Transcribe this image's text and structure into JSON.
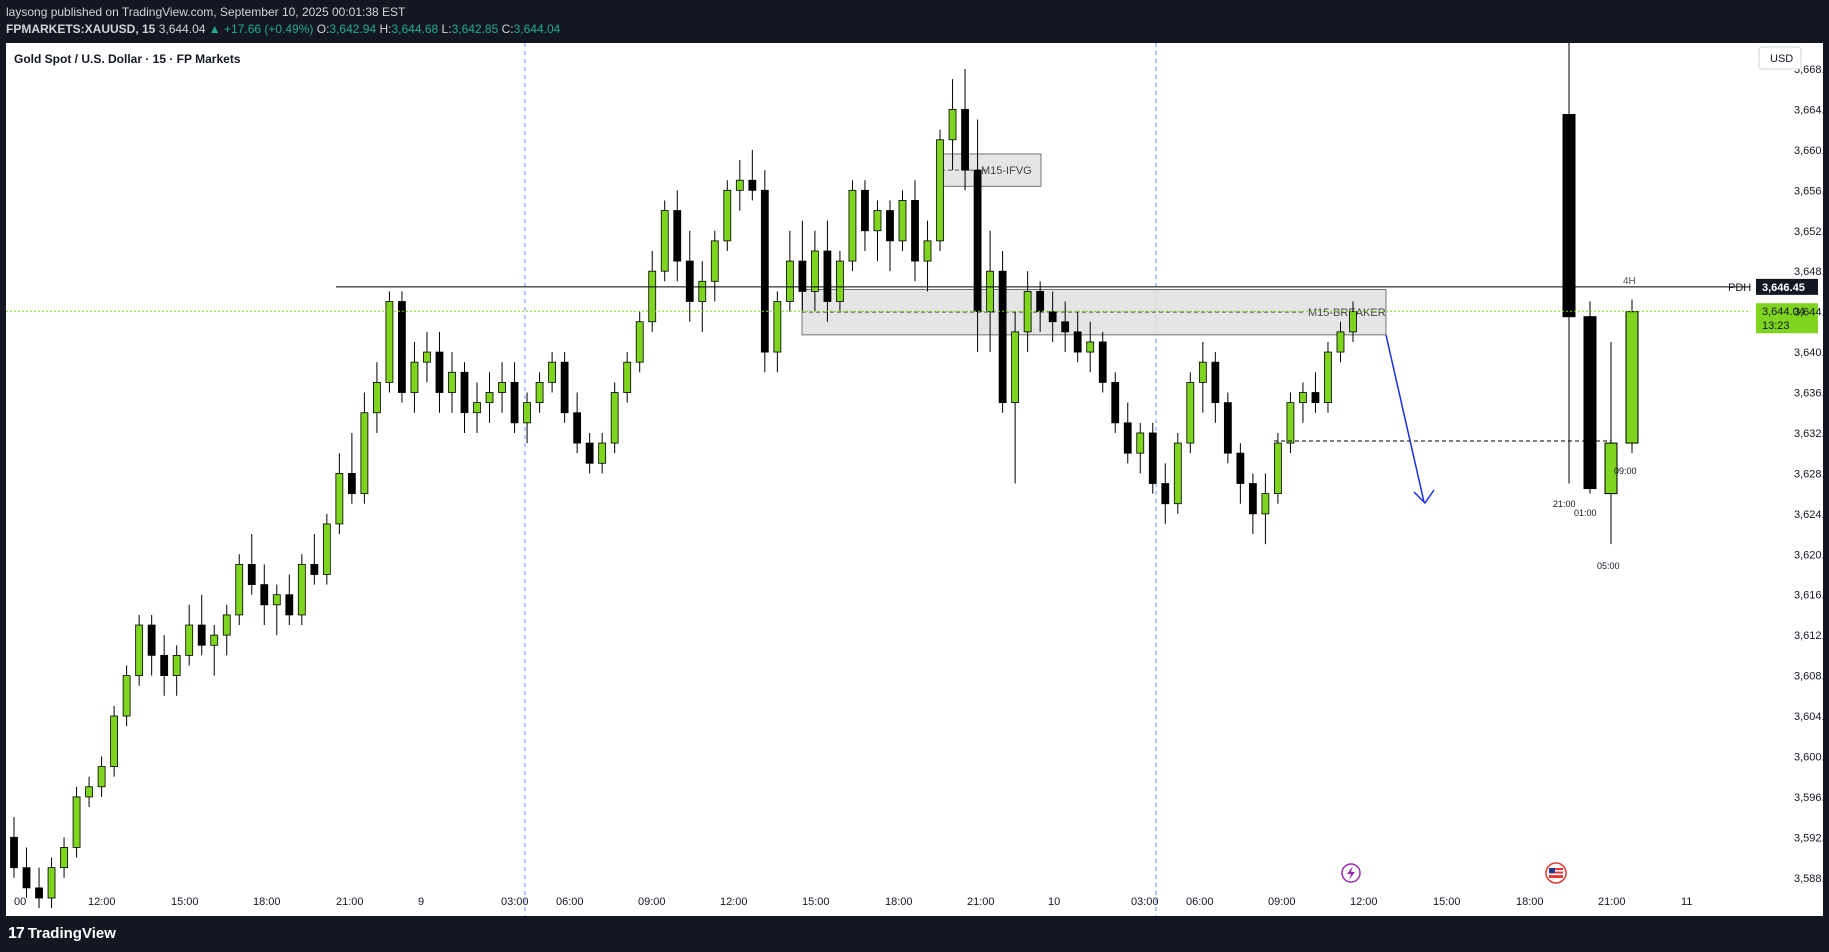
{
  "header": {
    "published_line": "laysong published on TradingView.com, September 10, 2025 00:01:38 EST",
    "symbol": "FPMARKETS:XAUUSD, 15",
    "last": "3,644.04",
    "change_arrow": "▲",
    "change": "+17.66 (+0.49%)",
    "o_label": "O:",
    "o": "3,642.94",
    "h_label": "H:",
    "h": "3,644.68",
    "l_label": "L:",
    "l": "3,642.85",
    "c_label": "C:",
    "c": "3,644.04"
  },
  "chart_title": "Gold Spot / U.S. Dollar · 15 · FP Markets",
  "currency_button": "USD",
  "footer": {
    "logo_text": "TradingView",
    "logo_mark": "17"
  },
  "colors": {
    "up": "#7fd41f",
    "down": "#000000",
    "price_line": "#7fd41f",
    "annotation_arrow": "#1730e0",
    "session_line": "#2962ff"
  },
  "chart_data": {
    "type": "candlestick",
    "title": "Gold Spot / U.S. Dollar · 15 · FP Markets",
    "y_axis": {
      "min": 3586,
      "max": 3668,
      "ticks": [
        "3,588.00",
        "3,592.00",
        "3,596.00",
        "3,600.00",
        "3,604.00",
        "3,608.00",
        "3,612.00",
        "3,616.00",
        "3,620.00",
        "3,624.00",
        "3,628.00",
        "3,632.00",
        "3,636.00",
        "3,640.00",
        "3,644.00",
        "3,648.00",
        "3,652.00",
        "3,656.00",
        "3,660.00",
        "3,664.00",
        "3,668.00"
      ]
    },
    "x_axis": {
      "ticks": [
        "00",
        "12:00",
        "15:00",
        "18:00",
        "21:00",
        "9",
        "03:00",
        "06:00",
        "09:00",
        "12:00",
        "15:00",
        "18:00",
        "21:00",
        "10",
        "03:00",
        "06:00",
        "09:00",
        "12:00",
        "15:00",
        "18:00",
        "21:00",
        "11"
      ]
    },
    "last_price": {
      "label": "3,644.04",
      "countdown": "13:23",
      "value": 3644.04
    },
    "levels": [
      {
        "name": "PDH",
        "label": "3,646.45",
        "value": 3646.45
      },
      {
        "name": "4H",
        "value": 3646.45
      }
    ],
    "zones": [
      {
        "label": "M15-IFVG",
        "top": 3659.6,
        "bottom": 3656.4
      },
      {
        "label": "M15-BREAKER",
        "top": 3646.2,
        "bottom": 3641.7
      }
    ],
    "htf_candles": {
      "timeframe": "4H",
      "labels": [
        "21:00",
        "01:00",
        "05:00",
        "09:00"
      ],
      "candles": [
        {
          "label": "21:00",
          "o": 3663.5,
          "h": 3674.0,
          "l": 3627.0,
          "c": 3643.5
        },
        {
          "label": "01:00",
          "o": 3643.5,
          "h": 3645.0,
          "l": 3626.0,
          "c": 3626.5
        },
        {
          "label": "05:00",
          "o": 3626.0,
          "h": 3641.0,
          "l": 3621.0,
          "c": 3631.0
        },
        {
          "label": "09:00",
          "o": 3631.0,
          "h": 3645.2,
          "l": 3630.0,
          "c": 3644.0
        }
      ]
    },
    "dashed_level": 3631.2,
    "series": [
      {
        "name": "",
        "ohlc": [
          [
            3592,
            3594,
            3588,
            3589
          ],
          [
            3589,
            3591,
            3586,
            3587
          ],
          [
            3587,
            3589,
            3585,
            3586
          ],
          [
            3586,
            3590,
            3585,
            3589
          ],
          [
            3589,
            3592,
            3588,
            3591
          ],
          [
            3591,
            3597,
            3590,
            3596
          ],
          [
            3596,
            3598,
            3595,
            3597
          ],
          [
            3597,
            3600,
            3596,
            3599
          ],
          [
            3599,
            3605,
            3598,
            3604
          ],
          [
            3604,
            3609,
            3603,
            3608
          ],
          [
            3608,
            3614,
            3607,
            3613
          ],
          [
            3613,
            3614,
            3608,
            3610
          ],
          [
            3610,
            3612,
            3606,
            3608
          ],
          [
            3608,
            3611,
            3606,
            3610
          ],
          [
            3610,
            3615,
            3609,
            3613
          ],
          [
            3613,
            3616,
            3610,
            3611
          ],
          [
            3611,
            3613,
            3608,
            3612
          ],
          [
            3612,
            3615,
            3610,
            3614
          ],
          [
            3614,
            3620,
            3613,
            3619
          ],
          [
            3619,
            3622,
            3616,
            3617
          ],
          [
            3617,
            3619,
            3613,
            3615
          ],
          [
            3615,
            3617,
            3612,
            3616
          ],
          [
            3616,
            3618,
            3613,
            3614
          ],
          [
            3614,
            3620,
            3613,
            3619
          ],
          [
            3619,
            3622,
            3617,
            3618
          ],
          [
            3618,
            3624,
            3617,
            3623
          ],
          [
            3623,
            3630,
            3622,
            3628
          ],
          [
            3628,
            3632,
            3625,
            3626
          ],
          [
            3626,
            3636,
            3625,
            3634
          ],
          [
            3634,
            3639,
            3632,
            3637
          ],
          [
            3637,
            3646,
            3636,
            3645
          ],
          [
            3645,
            3646,
            3635,
            3636
          ],
          [
            3636,
            3641,
            3634,
            3639
          ],
          [
            3639,
            3642,
            3637,
            3640
          ],
          [
            3640,
            3642,
            3634,
            3636
          ],
          [
            3636,
            3640,
            3634,
            3638
          ],
          [
            3638,
            3639,
            3632,
            3634
          ],
          [
            3634,
            3637,
            3632,
            3635
          ],
          [
            3635,
            3638,
            3633,
            3636
          ],
          [
            3636,
            3639,
            3634,
            3637
          ],
          [
            3637,
            3639,
            3632,
            3633
          ],
          [
            3633,
            3636,
            3631,
            3635
          ],
          [
            3635,
            3638,
            3634,
            3637
          ],
          [
            3637,
            3640,
            3636,
            3639
          ],
          [
            3639,
            3640,
            3633,
            3634
          ],
          [
            3634,
            3636,
            3630,
            3631
          ],
          [
            3631,
            3632,
            3628,
            3629
          ],
          [
            3629,
            3632,
            3628,
            3631
          ],
          [
            3631,
            3637,
            3630,
            3636
          ],
          [
            3636,
            3640,
            3635,
            3639
          ],
          [
            3639,
            3644,
            3638,
            3643
          ],
          [
            3643,
            3650,
            3642,
            3648
          ],
          [
            3648,
            3655,
            3647,
            3654
          ],
          [
            3654,
            3656,
            3647,
            3649
          ],
          [
            3649,
            3652,
            3643,
            3645
          ],
          [
            3645,
            3649,
            3642,
            3647
          ],
          [
            3647,
            3652,
            3645,
            3651
          ],
          [
            3651,
            3657,
            3650,
            3656
          ],
          [
            3656,
            3659,
            3654,
            3657
          ],
          [
            3657,
            3660,
            3655,
            3656
          ],
          [
            3656,
            3658,
            3638,
            3640
          ],
          [
            3640,
            3646,
            3638,
            3645
          ],
          [
            3645,
            3652,
            3644,
            3649
          ],
          [
            3649,
            3653,
            3644,
            3646
          ],
          [
            3646,
            3652,
            3644,
            3650
          ],
          [
            3650,
            3653,
            3643,
            3645
          ],
          [
            3645,
            3650,
            3644,
            3649
          ],
          [
            3649,
            3657,
            3648,
            3656
          ],
          [
            3656,
            3657,
            3650,
            3652
          ],
          [
            3652,
            3655,
            3649,
            3654
          ],
          [
            3654,
            3655,
            3648,
            3651
          ],
          [
            3651,
            3656,
            3650,
            3655
          ],
          [
            3655,
            3657,
            3647,
            3649
          ],
          [
            3649,
            3653,
            3646,
            3651
          ],
          [
            3651,
            3662,
            3650,
            3661
          ],
          [
            3661,
            3667,
            3658,
            3664
          ],
          [
            3664,
            3668,
            3656,
            3658
          ],
          [
            3658,
            3663,
            3640,
            3644
          ],
          [
            3644,
            3652,
            3640,
            3648
          ],
          [
            3648,
            3650,
            3634,
            3635
          ],
          [
            3635,
            3644,
            3627,
            3642
          ],
          [
            3642,
            3648,
            3640,
            3646
          ],
          [
            3646,
            3647,
            3642,
            3644
          ],
          [
            3644,
            3646,
            3641,
            3643
          ],
          [
            3643,
            3645,
            3640,
            3642
          ],
          [
            3642,
            3644,
            3639,
            3640
          ],
          [
            3640,
            3643,
            3638,
            3641
          ],
          [
            3641,
            3642,
            3636,
            3637
          ],
          [
            3637,
            3638,
            3632,
            3633
          ],
          [
            3633,
            3635,
            3629,
            3630
          ],
          [
            3630,
            3633,
            3628,
            3632
          ],
          [
            3632,
            3633,
            3626,
            3627
          ],
          [
            3627,
            3629,
            3623,
            3625
          ],
          [
            3625,
            3632,
            3624,
            3631
          ],
          [
            3631,
            3638,
            3630,
            3637
          ],
          [
            3637,
            3641,
            3634,
            3639
          ],
          [
            3639,
            3640,
            3633,
            3635
          ],
          [
            3635,
            3636,
            3629,
            3630
          ],
          [
            3630,
            3631,
            3625,
            3627
          ],
          [
            3627,
            3628,
            3622,
            3624
          ],
          [
            3624,
            3628,
            3621,
            3626
          ],
          [
            3626,
            3632,
            3625,
            3631
          ],
          [
            3631,
            3636,
            3630,
            3635
          ],
          [
            3635,
            3637,
            3633,
            3636
          ],
          [
            3636,
            3638,
            3634,
            3635
          ],
          [
            3635,
            3641,
            3634,
            3640
          ],
          [
            3640,
            3643,
            3639,
            3642
          ],
          [
            3642,
            3645,
            3641,
            3644
          ]
        ]
      }
    ]
  }
}
